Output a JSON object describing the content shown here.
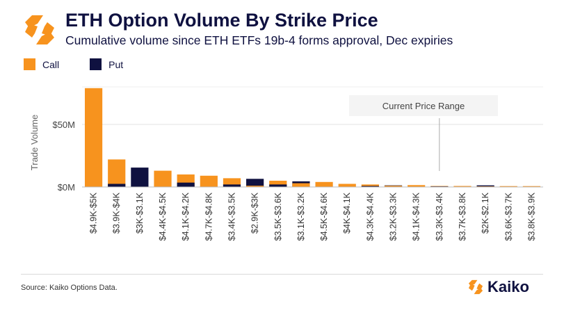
{
  "header": {
    "title": "ETH Option Volume By Strike Price",
    "subtitle": "Cumulative volume since ETH ETFs 19b-4 forms approval, Dec expiries"
  },
  "legend": [
    {
      "label": "Call",
      "color": "#f7931e"
    },
    {
      "label": "Put",
      "color": "#0f1140"
    }
  ],
  "source": "Source: Kaiko Options Data.",
  "brand": {
    "name": "Kaiko",
    "logo_icon": "kaiko-logo-icon"
  },
  "chart_data": {
    "type": "bar",
    "ylabel": "Trade Volume",
    "xlabel": "",
    "ylim": [
      0,
      80
    ],
    "yticks": [
      {
        "value": 0,
        "label": "$0M"
      },
      {
        "value": 50,
        "label": "$50M"
      }
    ],
    "annotation": {
      "text": "Current Price Range",
      "category": "$3.3K-$3.4K"
    },
    "grid": true,
    "categories": [
      "$4.9K-$5K",
      "$3.9K-$4K",
      "$3K-$3.1K",
      "$4.4K-$4.5K",
      "$4.1K-$4.2K",
      "$4.7K-$4.8K",
      "$3.4K-$3.5K",
      "$2.9K-$3K",
      "$3.5K-$3.6K",
      "$3.1K-$3.2K",
      "$4.5K-$4.6K",
      "$4K-$4.1K",
      "$4.3K-$4.4K",
      "$3.2K-$3.3K",
      "$4.1K-$4.3K",
      "$3.3K-$3.4K",
      "$3.7K-$3.8K",
      "$2K-$2.1K",
      "$3.6K-$3.7K",
      "$3.8K-$3.9K"
    ],
    "series": [
      {
        "name": "Call",
        "color": "#f7931e",
        "values": [
          79,
          22,
          0,
          13,
          10,
          9,
          7,
          1,
          5,
          3,
          4,
          2.5,
          2,
          1,
          1.5,
          0.8,
          0.8,
          0.5,
          0.7,
          0.7
        ]
      },
      {
        "name": "Put",
        "color": "#0f1140",
        "values": [
          0,
          2.5,
          15.5,
          0,
          3.5,
          0,
          2,
          6.5,
          2,
          4.5,
          0,
          0,
          0.8,
          1.3,
          0,
          0.5,
          0,
          1.3,
          0,
          0
        ]
      }
    ]
  }
}
